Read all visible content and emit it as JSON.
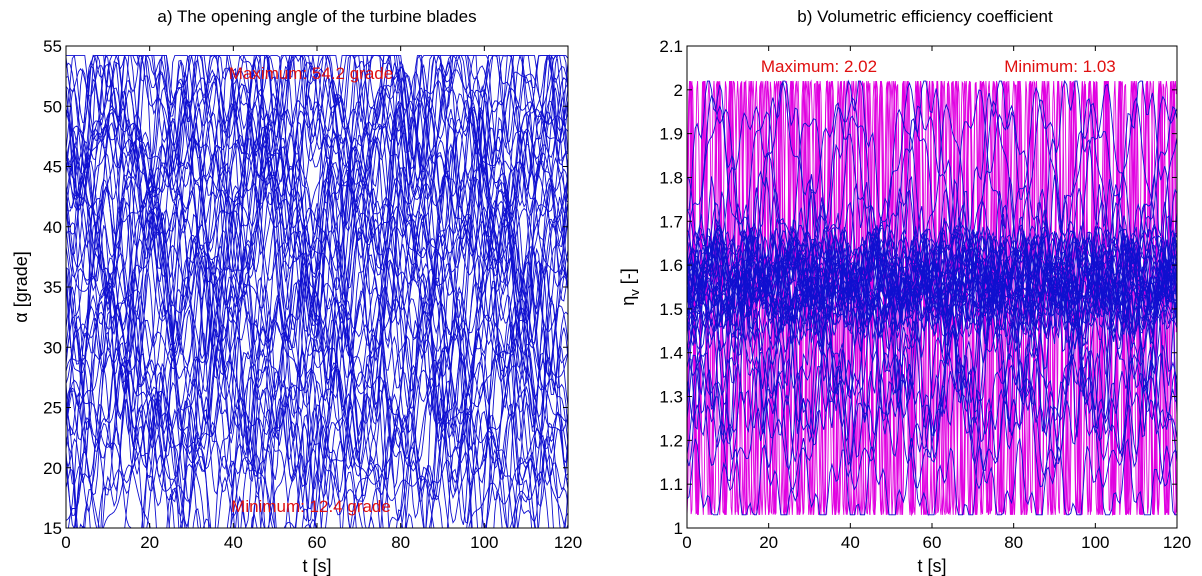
{
  "chart_data": [
    {
      "type": "line",
      "title": "a) The opening angle of the turbine blades",
      "xlabel": "t [s]",
      "ylabel": "α [grade]",
      "xlim": [
        0,
        120
      ],
      "ylim": [
        15,
        55
      ],
      "xticks": [
        "0",
        "20",
        "40",
        "60",
        "80",
        "100",
        "120"
      ],
      "yticks": [
        "15",
        "20",
        "25",
        "30",
        "35",
        "40",
        "45",
        "50",
        "55"
      ],
      "grid": false,
      "series_color": "#1010d0",
      "series_count": 60,
      "value_range": [
        12.4,
        54.2
      ],
      "annotations": [
        {
          "text": "Maximum: 54.2 grade"
        },
        {
          "text": "Minimum: 12.4 grade"
        }
      ]
    },
    {
      "type": "line",
      "title": "b) Volumetric efficiency coefficient",
      "xlabel": "t [s]",
      "ylabel": "η",
      "ylabel_subscript": "v",
      "ylabel_suffix": " [-]",
      "xlim": [
        0,
        120
      ],
      "ylim": [
        1,
        2.1
      ],
      "xticks": [
        "0",
        "20",
        "40",
        "60",
        "80",
        "100",
        "120"
      ],
      "yticks": [
        "1",
        "1.1",
        "1.2",
        "1.3",
        "1.4",
        "1.5",
        "1.6",
        "1.7",
        "1.8",
        "1.9",
        "2",
        "2.1"
      ],
      "grid": false,
      "series_colors": [
        "#e000e0",
        "#1010d0"
      ],
      "value_range": [
        1.03,
        2.02
      ],
      "annotations": [
        {
          "text": "Maximum: 2.02"
        },
        {
          "text": "Minimum: 1.03"
        }
      ]
    }
  ]
}
